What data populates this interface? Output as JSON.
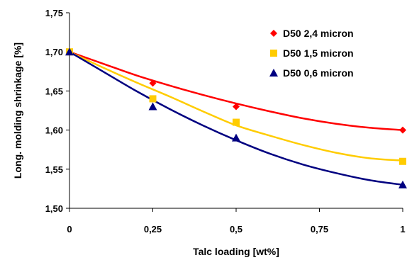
{
  "chart_data": {
    "type": "line",
    "xlabel": "Talc loading [wt%]",
    "ylabel": "Long. molding shrinkage [%]",
    "xlim": [
      0,
      1
    ],
    "ylim": [
      1.5,
      1.75
    ],
    "x_ticks": [
      0,
      0.25,
      0.5,
      0.75,
      1
    ],
    "x_tick_labels": [
      "0",
      "0,25",
      "0,5",
      "0,75",
      "1"
    ],
    "y_ticks": [
      1.5,
      1.55,
      1.6,
      1.65,
      1.7,
      1.75
    ],
    "y_tick_labels": [
      "1,50",
      "1,55",
      "1,60",
      "1,65",
      "1,70",
      "1,75"
    ],
    "grid": false,
    "legend_position": "top-right",
    "series": [
      {
        "name": "D50 2,4 micron",
        "marker": "diamond",
        "color": "#ff0000",
        "x": [
          0,
          0.25,
          0.5,
          1
        ],
        "y": [
          1.7,
          1.66,
          1.63,
          1.6
        ],
        "fit": [
          [
            0,
            1.7
          ],
          [
            0.1,
            1.685
          ],
          [
            0.2,
            1.67
          ],
          [
            0.3,
            1.657
          ],
          [
            0.4,
            1.645
          ],
          [
            0.5,
            1.634
          ],
          [
            0.6,
            1.624
          ],
          [
            0.7,
            1.615
          ],
          [
            0.8,
            1.608
          ],
          [
            0.9,
            1.603
          ],
          [
            1.0,
            1.6
          ]
        ]
      },
      {
        "name": "D50 1,5 micron",
        "marker": "square",
        "color": "#ffcc00",
        "x": [
          0,
          0.25,
          0.5,
          1
        ],
        "y": [
          1.7,
          1.64,
          1.61,
          1.56
        ],
        "fit": [
          [
            0,
            1.7
          ],
          [
            0.1,
            1.68
          ],
          [
            0.2,
            1.661
          ],
          [
            0.3,
            1.643
          ],
          [
            0.4,
            1.624
          ],
          [
            0.5,
            1.606
          ],
          [
            0.6,
            1.593
          ],
          [
            0.7,
            1.581
          ],
          [
            0.8,
            1.571
          ],
          [
            0.9,
            1.564
          ],
          [
            1.0,
            1.561
          ]
        ]
      },
      {
        "name": "D50 0,6 micron",
        "marker": "triangle",
        "color": "#000080",
        "x": [
          0,
          0.25,
          0.5,
          1
        ],
        "y": [
          1.7,
          1.63,
          1.59,
          1.53
        ],
        "fit": [
          [
            0,
            1.7
          ],
          [
            0.1,
            1.675
          ],
          [
            0.2,
            1.65
          ],
          [
            0.3,
            1.627
          ],
          [
            0.4,
            1.606
          ],
          [
            0.5,
            1.587
          ],
          [
            0.6,
            1.57
          ],
          [
            0.7,
            1.556
          ],
          [
            0.8,
            1.545
          ],
          [
            0.9,
            1.536
          ],
          [
            1.0,
            1.53
          ]
        ]
      }
    ]
  }
}
